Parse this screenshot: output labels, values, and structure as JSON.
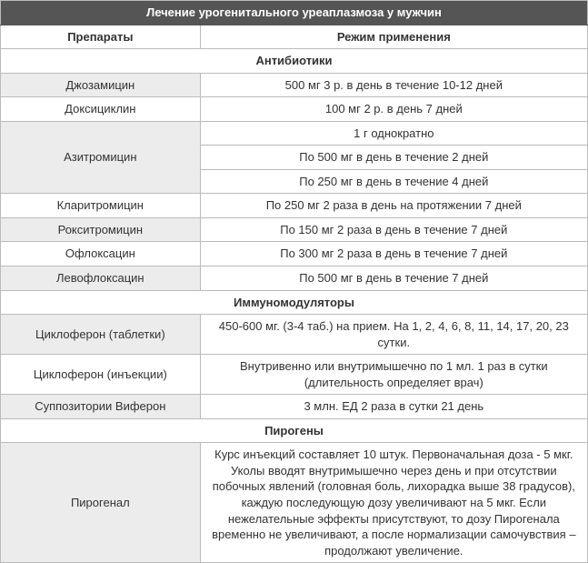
{
  "title": "Лечение урогенитального уреаплазмоза у мужчин",
  "headers": {
    "drug": "Препараты",
    "regimen": "Режим применения"
  },
  "sections": {
    "antibiotics": "Антибиотики",
    "immuno": "Иммуномодуляторы",
    "pyrogens": "Пирогены"
  },
  "antibiotics": {
    "r0": {
      "drug": "Джозамицин",
      "regimen": "500 мг 3 р. в день в течение 10-12 дней"
    },
    "r1": {
      "drug": "Доксициклин",
      "regimen": "100 мг 2 р. в день 7 дней"
    },
    "r2": {
      "drug": "Азитромицин",
      "reg_a": "1 г однократно",
      "reg_b": "По 500 мг в день в течение 2 дней",
      "reg_c": "По 250 мг в день в течение 4 дней"
    },
    "r3": {
      "drug": "Кларитромицин",
      "regimen": "По 250 мг 2 раза в день на протяжении 7 дней"
    },
    "r4": {
      "drug": "Рокситромицин",
      "regimen": "По 150 мг 2 раза в день в течение 7 дней"
    },
    "r5": {
      "drug": "Офлоксацин",
      "regimen": "По 300 мг 2 раза в день в течение 7 дней"
    },
    "r6": {
      "drug": "Левофлоксацин",
      "regimen": "По 500 мг в день в течение 7 дней"
    }
  },
  "immuno": {
    "r0": {
      "drug": "Циклоферон (таблетки)",
      "regimen": "450-600 мг. (3-4 таб.) на прием. На 1, 2, 4, 6, 8, 11, 14, 17, 20, 23 сутки."
    },
    "r1": {
      "drug": "Циклоферон (инъекции)",
      "regimen": "Внутривенно или внутримышечно по 1 мл. 1 раз в сутки (длительность определяет врач)"
    },
    "r2": {
      "drug": "Суппозитории Виферон",
      "regimen": "3 млн. ЕД 2 раза в сутки 21 день"
    }
  },
  "pyrogens": {
    "r0": {
      "drug": "Пирогенал",
      "regimen": "Курс инъекций составляет 10 штук. Первоначальная доза - 5 мкг. Уколы вводят внутримышечно через день и при отсутствии побочных явлений (головная боль, лихорадка выше 38 градусов), каждую последующую дозу увеличивают на 5 мкг. Если нежелательные эффекты присутствуют, то дозу Пирогенала временно не увеличивают, а после нормализации самочувствия – продолжают увеличение."
    }
  }
}
